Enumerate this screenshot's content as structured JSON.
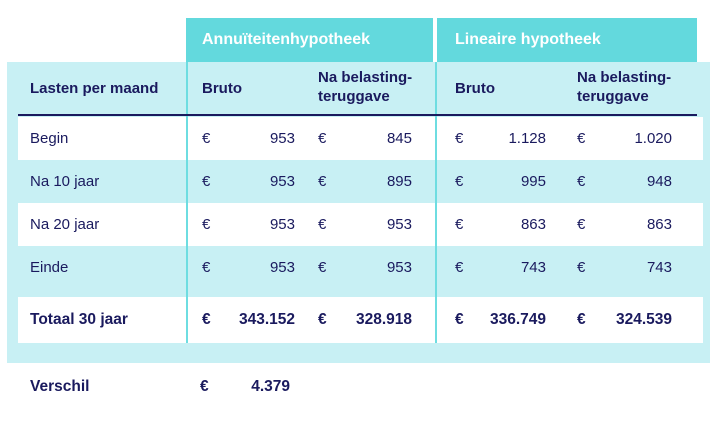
{
  "chart_data": {
    "type": "table",
    "corner_label": "Lasten per maand",
    "column_groups": [
      {
        "label": "Annuïteitenhypotheek"
      },
      {
        "label": "Lineaire hypotheek"
      }
    ],
    "sub_columns": [
      "Bruto",
      "Na belasting-teruggave"
    ],
    "currency_symbol": "€",
    "rows": [
      {
        "label": "Begin",
        "annuity_bruto": "953",
        "annuity_net": "845",
        "linear_bruto": "1.128",
        "linear_net": "1.020"
      },
      {
        "label": "Na 10 jaar",
        "annuity_bruto": "953",
        "annuity_net": "895",
        "linear_bruto": "995",
        "linear_net": "948"
      },
      {
        "label": "Na 20 jaar",
        "annuity_bruto": "953",
        "annuity_net": "953",
        "linear_bruto": "863",
        "linear_net": "863"
      },
      {
        "label": "Einde",
        "annuity_bruto": "953",
        "annuity_net": "953",
        "linear_bruto": "743",
        "linear_net": "743"
      }
    ],
    "total_row": {
      "label": "Totaal 30 jaar",
      "annuity_bruto": "343.152",
      "annuity_net": "328.918",
      "linear_bruto": "336.749",
      "linear_net": "324.539"
    },
    "difference_row": {
      "label": "Verschil",
      "amount": "4.379"
    }
  },
  "colors": {
    "teal_header": "#63d9dd",
    "light_cyan_body": "#c8f0f4",
    "navy_text": "#1a1a5e",
    "divider_teal": "#6edde1"
  }
}
